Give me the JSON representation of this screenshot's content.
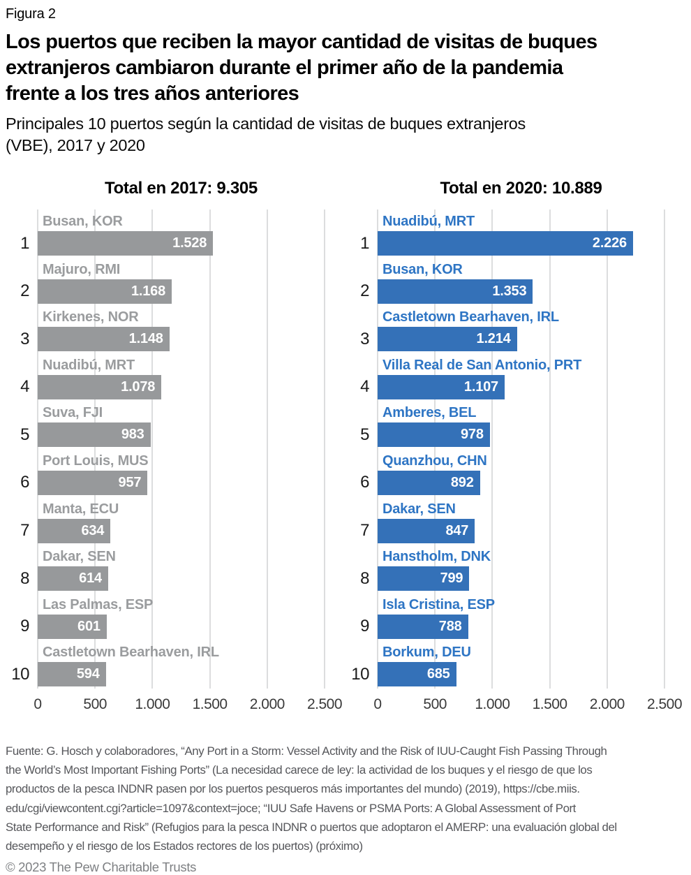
{
  "header": {
    "figure_label": "Figura 2",
    "title": "Los puertos que reciben la mayor cantidad de visitas de buques\nextranjeros cambiaron durante el primer año de la pandemia\nfrente a los tres años anteriores",
    "subtitle": "Principales 10 puertos según la cantidad de visitas de buques extranjeros\n(VBE), 2017 y 2020"
  },
  "chart_data": [
    {
      "type": "bar",
      "orientation": "horizontal",
      "title": "Total en 2017: 9.305",
      "total": 9305,
      "bar_color": "#97999b",
      "label_color": "#9a9c9e",
      "value_text_color": "#ffffff",
      "xlim": [
        0,
        2500
      ],
      "grid": true,
      "x_ticks": [
        {
          "label": "0",
          "value": 0
        },
        {
          "label": "500",
          "value": 500
        },
        {
          "label": "1.000",
          "value": 1000
        },
        {
          "label": "1.500",
          "value": 1500
        },
        {
          "label": "2.000",
          "value": 2000
        },
        {
          "label": "2.500",
          "value": 2500
        }
      ],
      "bars": [
        {
          "rank": "1",
          "label": "Busan, KOR",
          "value": 1528,
          "display": "1.528"
        },
        {
          "rank": "2",
          "label": "Majuro, RMI",
          "value": 1168,
          "display": "1.168"
        },
        {
          "rank": "3",
          "label": "Kirkenes, NOR",
          "value": 1148,
          "display": "1.148"
        },
        {
          "rank": "4",
          "label": "Nuadibú, MRT",
          "value": 1078,
          "display": "1.078"
        },
        {
          "rank": "5",
          "label": "Suva, FJI",
          "value": 983,
          "display": "983"
        },
        {
          "rank": "6",
          "label": "Port Louis, MUS",
          "value": 957,
          "display": "957"
        },
        {
          "rank": "7",
          "label": "Manta, ECU",
          "value": 634,
          "display": "634"
        },
        {
          "rank": "8",
          "label": "Dakar, SEN",
          "value": 614,
          "display": "614"
        },
        {
          "rank": "9",
          "label": "Las Palmas, ESP",
          "value": 601,
          "display": "601"
        },
        {
          "rank": "10",
          "label": "Castletown Bearhaven, IRL",
          "value": 594,
          "display": "594"
        }
      ]
    },
    {
      "type": "bar",
      "orientation": "horizontal",
      "title": "Total en 2020: 10.889",
      "total": 10889,
      "bar_color": "#3471b8",
      "label_color": "#2e75c4",
      "value_text_color": "#ffffff",
      "xlim": [
        0,
        2500
      ],
      "grid": true,
      "x_ticks": [
        {
          "label": "0",
          "value": 0
        },
        {
          "label": "500",
          "value": 500
        },
        {
          "label": "1.000",
          "value": 1000
        },
        {
          "label": "1.500",
          "value": 1500
        },
        {
          "label": "2.000",
          "value": 2000
        },
        {
          "label": "2.500",
          "value": 2500
        }
      ],
      "bars": [
        {
          "rank": "1",
          "label": "Nuadibú, MRT",
          "value": 2226,
          "display": "2.226"
        },
        {
          "rank": "2",
          "label": "Busan, KOR",
          "value": 1353,
          "display": "1.353"
        },
        {
          "rank": "3",
          "label": "Castletown Bearhaven, IRL",
          "value": 1214,
          "display": "1.214"
        },
        {
          "rank": "4",
          "label": "Villa Real de San Antonio, PRT",
          "value": 1107,
          "display": "1.107"
        },
        {
          "rank": "5",
          "label": "Amberes, BEL",
          "value": 978,
          "display": "978"
        },
        {
          "rank": "6",
          "label": "Quanzhou, CHN",
          "value": 892,
          "display": "892"
        },
        {
          "rank": "7",
          "label": "Dakar, SEN",
          "value": 847,
          "display": "847"
        },
        {
          "rank": "8",
          "label": "Hanstholm, DNK",
          "value": 799,
          "display": "799"
        },
        {
          "rank": "9",
          "label": "Isla Cristina, ESP",
          "value": 788,
          "display": "788"
        },
        {
          "rank": "10",
          "label": "Borkum, DEU",
          "value": 685,
          "display": "685"
        }
      ]
    }
  ],
  "footer": {
    "source": "Fuente: G. Hosch y colaboradores, “Any Port in a Storm: Vessel Activity and the Risk of IUU-Caught Fish Passing Through\nthe World’s Most Important Fishing Ports” (La necesidad carece de ley: la actividad de los buques y el riesgo de que los\nproductos de la pesca INDNR pasen por los puertos pesqueros más importantes del mundo) (2019), https://cbe.miis.\nedu/cgi/viewcontent.cgi?article=1097&context=joce; “IUU Safe Havens or PSMA Ports: A Global Assessment of Port\nState Performance and Risk” (Refugios para la pesca INDNR o puertos que adoptaron el AMERP: una evaluación global del\ndesempeño y el riesgo de los Estados rectores de los puertos) (próximo)",
    "copyright": "© 2023 The Pew Charitable Trusts"
  }
}
